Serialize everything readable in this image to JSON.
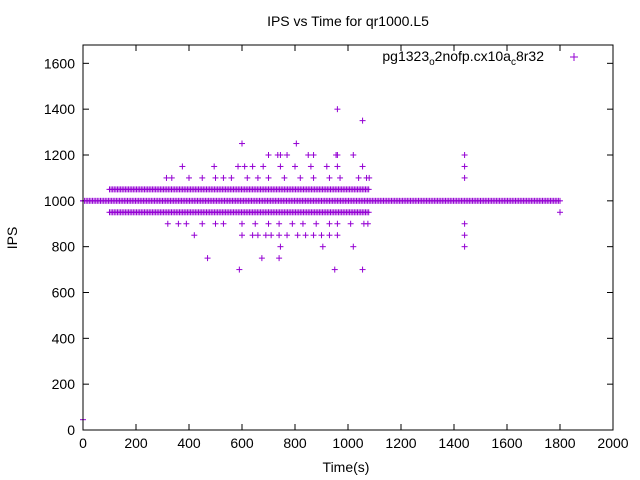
{
  "chart_data": {
    "type": "scatter",
    "title": "IPS vs Time for qr1000.L5",
    "xlabel": "Time(s)",
    "ylabel": "IPS",
    "xlim": [
      0,
      2000
    ],
    "ylim": [
      0,
      1680
    ],
    "xticks": [
      0,
      200,
      400,
      600,
      800,
      1000,
      1200,
      1400,
      1600,
      1800,
      2000
    ],
    "yticks": [
      0,
      200,
      400,
      600,
      800,
      1000,
      1200,
      1400,
      1600
    ],
    "legend": {
      "position": "top-right",
      "label_parts": [
        "pg1323",
        "o",
        "2nofp.cx10a",
        "c",
        "8r32"
      ]
    },
    "grid": false,
    "series": [
      {
        "name": "pg1323_o2nofp.cx10a_c8r32",
        "color": "#9400d3",
        "marker": "+",
        "points": [
          [
            0,
            45
          ],
          [
            0,
            1000
          ],
          [
            1440,
            1200
          ],
          [
            1440,
            1150
          ],
          [
            1440,
            1100
          ],
          [
            1440,
            900
          ],
          [
            1440,
            850
          ],
          [
            1440,
            800
          ],
          [
            1800,
            950
          ],
          [
            960,
            1400
          ],
          [
            1055,
            1350
          ],
          [
            600,
            1250
          ],
          [
            805,
            1250
          ],
          [
            735,
            1200
          ],
          [
            745,
            1200
          ],
          [
            700,
            1200
          ],
          [
            770,
            1200
          ],
          [
            850,
            1200
          ],
          [
            870,
            1200
          ],
          [
            955,
            1200
          ],
          [
            960,
            1200
          ],
          [
            1020,
            1200
          ],
          [
            375,
            1150
          ],
          [
            495,
            1150
          ],
          [
            585,
            1150
          ],
          [
            610,
            1150
          ],
          [
            640,
            1150
          ],
          [
            680,
            1150
          ],
          [
            745,
            1150
          ],
          [
            800,
            1150
          ],
          [
            860,
            1150
          ],
          [
            920,
            1150
          ],
          [
            960,
            1150
          ],
          [
            1055,
            1150
          ],
          [
            315,
            1100
          ],
          [
            335,
            1100
          ],
          [
            400,
            1100
          ],
          [
            450,
            1100
          ],
          [
            500,
            1100
          ],
          [
            530,
            1100
          ],
          [
            560,
            1100
          ],
          [
            620,
            1100
          ],
          [
            660,
            1100
          ],
          [
            700,
            1100
          ],
          [
            760,
            1100
          ],
          [
            820,
            1100
          ],
          [
            870,
            1100
          ],
          [
            930,
            1100
          ],
          [
            970,
            1100
          ],
          [
            1040,
            1100
          ],
          [
            1070,
            1100
          ],
          [
            1080,
            1100
          ],
          [
            320,
            900
          ],
          [
            360,
            900
          ],
          [
            390,
            900
          ],
          [
            450,
            900
          ],
          [
            500,
            900
          ],
          [
            530,
            900
          ],
          [
            600,
            900
          ],
          [
            650,
            900
          ],
          [
            700,
            900
          ],
          [
            740,
            900
          ],
          [
            790,
            900
          ],
          [
            830,
            900
          ],
          [
            880,
            900
          ],
          [
            930,
            900
          ],
          [
            960,
            900
          ],
          [
            1010,
            900
          ],
          [
            1060,
            900
          ],
          [
            1075,
            900
          ],
          [
            420,
            850
          ],
          [
            600,
            850
          ],
          [
            640,
            850
          ],
          [
            660,
            850
          ],
          [
            690,
            850
          ],
          [
            710,
            850
          ],
          [
            740,
            850
          ],
          [
            770,
            850
          ],
          [
            810,
            850
          ],
          [
            840,
            850
          ],
          [
            870,
            850
          ],
          [
            900,
            850
          ],
          [
            930,
            850
          ],
          [
            960,
            850
          ],
          [
            745,
            800
          ],
          [
            905,
            800
          ],
          [
            1020,
            800
          ],
          [
            470,
            750
          ],
          [
            675,
            750
          ],
          [
            740,
            750
          ],
          [
            590,
            700
          ],
          [
            950,
            700
          ],
          [
            1055,
            700
          ]
        ]
      }
    ]
  }
}
